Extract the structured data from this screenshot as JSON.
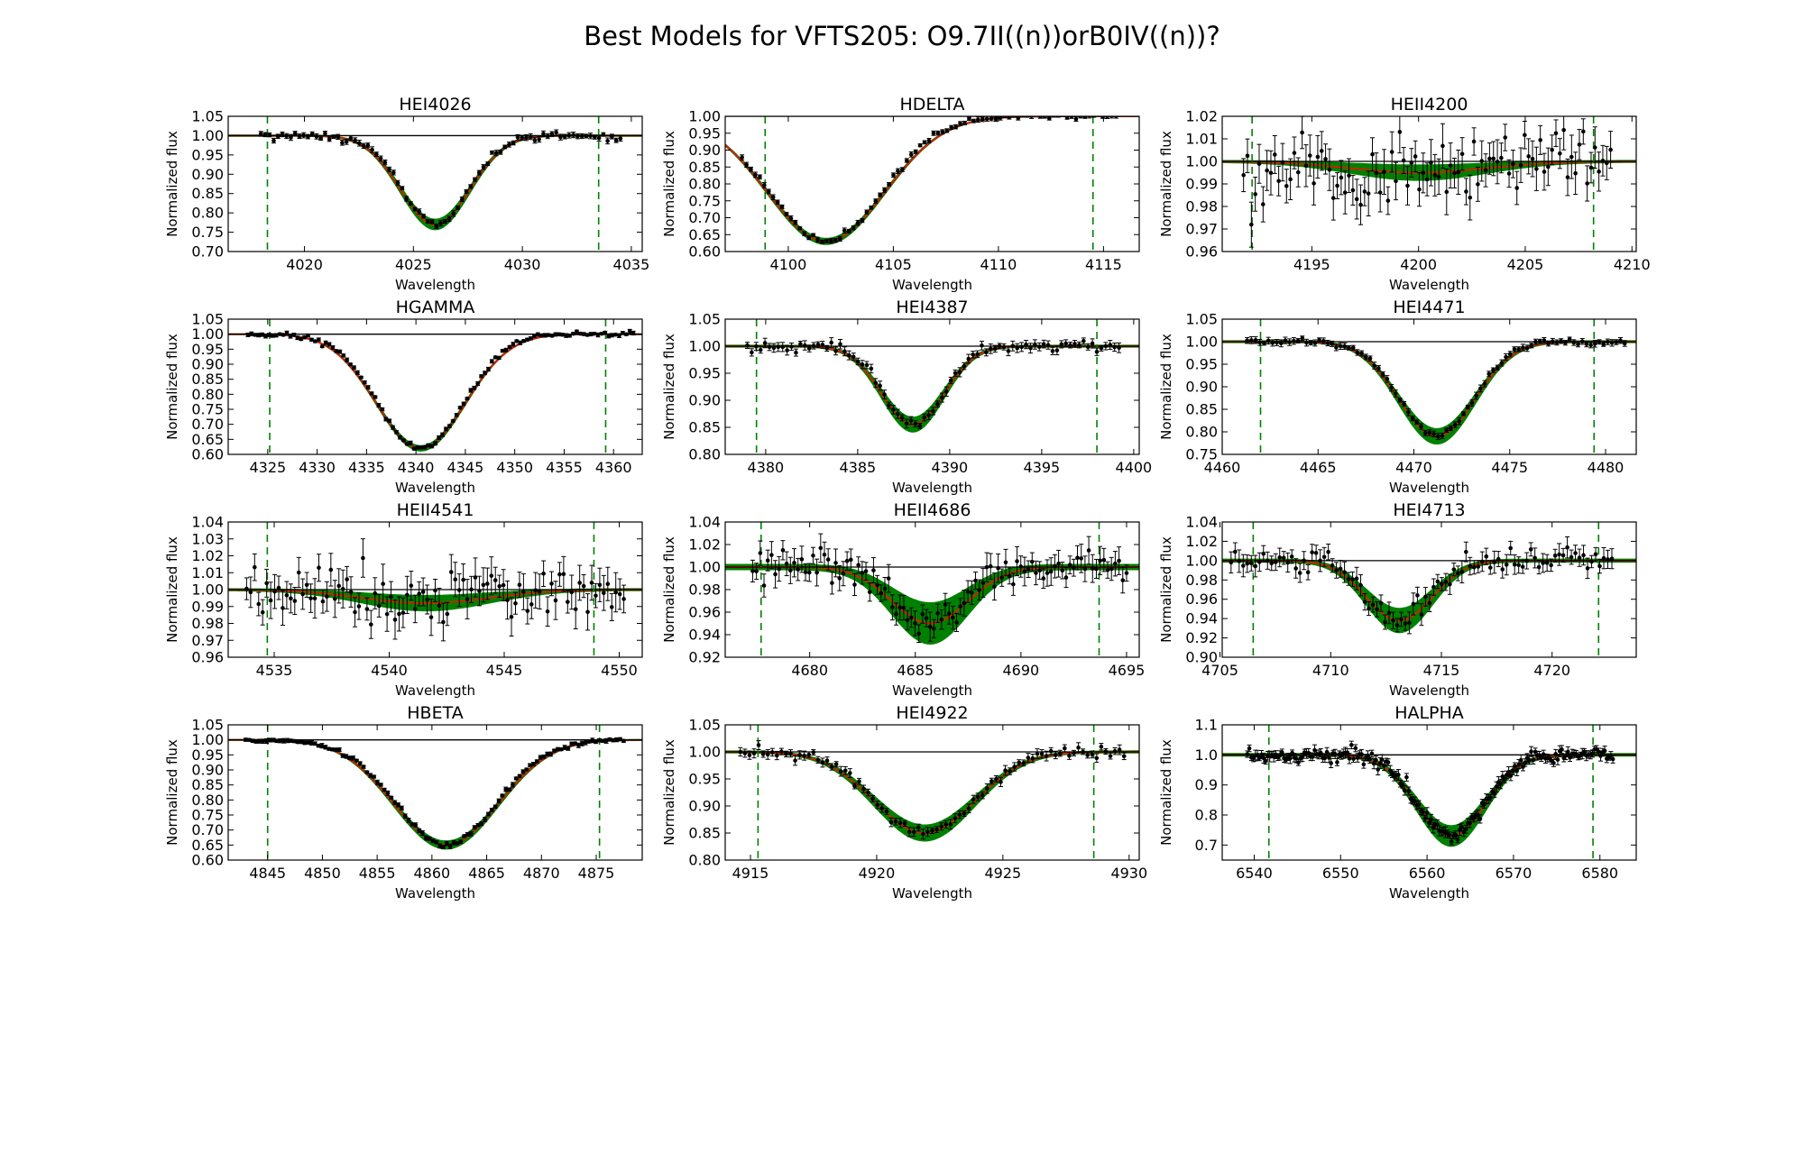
{
  "figure": {
    "title": "Best Models for VFTS205: O9.7II((n))orB0IV((n))?",
    "colors": {
      "data": "#000000",
      "model_band": "#008000",
      "best_model": "#cc2200",
      "window_lines": "#008000",
      "continuum": "#000000"
    }
  },
  "chart_data": [
    {
      "type": "line",
      "title": "HEI4026",
      "xlabel": "Wavelength",
      "ylabel": "Normalized flux",
      "xlim": [
        4016.5,
        4035.5
      ],
      "ylim": [
        0.7,
        1.05
      ],
      "xticks": [
        4020,
        4025,
        4030,
        4035
      ],
      "yticks": [
        0.7,
        0.75,
        0.8,
        0.85,
        0.9,
        0.95,
        1.0,
        1.05
      ],
      "ytick_decimals": 2,
      "line_center": 4026.0,
      "depth": 0.23,
      "width": 1.6,
      "asym": 0,
      "band": 0.012,
      "noise": 0.005,
      "errbar": 0.006,
      "window": [
        4018.3,
        4033.5
      ],
      "data_range": [
        4018.0,
        4034.5
      ],
      "n_points": 85,
      "continuum": 1.0
    },
    {
      "type": "line",
      "title": "HDELTA",
      "xlabel": "Wavelength",
      "ylabel": "Normalized flux",
      "xlim": [
        4097.0,
        4116.7
      ],
      "ylim": [
        0.6,
        1.0
      ],
      "xticks": [
        4100,
        4105,
        4110,
        4115
      ],
      "yticks": [
        0.6,
        0.65,
        0.7,
        0.75,
        0.8,
        0.85,
        0.9,
        0.95,
        1.0
      ],
      "ytick_decimals": 2,
      "line_center": 4101.8,
      "depth": 0.37,
      "width": 2.8,
      "asym": 0,
      "band": 0.008,
      "noise": 0.004,
      "errbar": 0.006,
      "window": [
        4098.9,
        4114.5
      ],
      "data_range": [
        4097.8,
        4115.6
      ],
      "n_points": 85,
      "continuum": 1.0
    },
    {
      "type": "line",
      "title": "HEII4200",
      "xlabel": "Wavelength",
      "ylabel": "Normalized flux",
      "xlim": [
        4190.8,
        4210.2
      ],
      "ylim": [
        0.96,
        1.02
      ],
      "xticks": [
        4195,
        4200,
        4205,
        4210
      ],
      "yticks": [
        0.96,
        0.97,
        0.98,
        0.99,
        1.0,
        1.01,
        1.02
      ],
      "ytick_decimals": 2,
      "line_center": 4200.0,
      "depth": 0.005,
      "width": 3.2,
      "asym": 0,
      "band": 0.003,
      "noise": 0.008,
      "errbar": 0.008,
      "window": [
        4192.2,
        4208.2
      ],
      "data_range": [
        4191.8,
        4209.0
      ],
      "n_points": 95,
      "continuum": 1.0
    },
    {
      "type": "line",
      "title": "HGAMMA",
      "xlabel": "Wavelength",
      "ylabel": "Normalized flux",
      "xlim": [
        4321.0,
        4362.9
      ],
      "ylim": [
        0.6,
        1.05
      ],
      "xticks": [
        4325,
        4330,
        4335,
        4340,
        4345,
        4350,
        4355,
        4360
      ],
      "yticks": [
        0.6,
        0.65,
        0.7,
        0.75,
        0.8,
        0.85,
        0.9,
        0.95,
        1.0,
        1.05
      ],
      "ytick_decimals": 2,
      "line_center": 4340.5,
      "depth": 0.38,
      "width": 4.5,
      "asym": 0,
      "band": 0.008,
      "noise": 0.004,
      "errbar": 0.005,
      "window": [
        4325.2,
        4359.2
      ],
      "data_range": [
        4323.0,
        4362.0
      ],
      "n_points": 110,
      "continuum": 1.0
    },
    {
      "type": "line",
      "title": "HEI4387",
      "xlabel": "Wavelength",
      "ylabel": "Normalized flux",
      "xlim": [
        4377.8,
        4400.3
      ],
      "ylim": [
        0.8,
        1.05
      ],
      "xticks": [
        4380,
        4385,
        4390,
        4395,
        4400
      ],
      "yticks": [
        0.8,
        0.85,
        0.9,
        0.95,
        1.0,
        1.05
      ],
      "ytick_decimals": 2,
      "line_center": 4388.0,
      "depth": 0.145,
      "width": 1.7,
      "asym": 0,
      "band": 0.012,
      "noise": 0.005,
      "errbar": 0.007,
      "window": [
        4379.5,
        4398.0
      ],
      "data_range": [
        4379.0,
        4399.2
      ],
      "n_points": 85,
      "continuum": 1.0
    },
    {
      "type": "line",
      "title": "HEI4471",
      "xlabel": "Wavelength",
      "ylabel": "Normalized flux",
      "xlim": [
        4460.0,
        4481.6
      ],
      "ylim": [
        0.75,
        1.05
      ],
      "xticks": [
        4460,
        4465,
        4470,
        4475,
        4480
      ],
      "yticks": [
        0.75,
        0.8,
        0.85,
        0.9,
        0.95,
        1.0,
        1.05
      ],
      "ytick_decimals": 2,
      "line_center": 4471.2,
      "depth": 0.21,
      "width": 2.0,
      "asym": 0,
      "band": 0.015,
      "noise": 0.004,
      "errbar": 0.006,
      "window": [
        4462.0,
        4479.4
      ],
      "data_range": [
        4461.3,
        4481.0
      ],
      "n_points": 90,
      "continuum": 1.0
    },
    {
      "type": "line",
      "title": "HEII4541",
      "xlabel": "Wavelength",
      "ylabel": "Normalized flux",
      "xlim": [
        4533.0,
        4551.0
      ],
      "ylim": [
        0.96,
        1.04
      ],
      "xticks": [
        4535,
        4540,
        4545,
        4550
      ],
      "yticks": [
        0.96,
        0.97,
        0.98,
        0.99,
        1.0,
        1.01,
        1.02,
        1.03,
        1.04
      ],
      "ytick_decimals": 2,
      "line_center": 4541.6,
      "depth": 0.008,
      "width": 2.8,
      "asym": 0,
      "band": 0.004,
      "noise": 0.008,
      "errbar": 0.009,
      "window": [
        4534.7,
        4548.9
      ],
      "data_range": [
        4533.8,
        4550.2
      ],
      "n_points": 95,
      "continuum": 1.0
    },
    {
      "type": "line",
      "title": "HEII4686",
      "xlabel": "Wavelength",
      "ylabel": "Normalized flux",
      "xlim": [
        4676.0,
        4695.6
      ],
      "ylim": [
        0.92,
        1.04
      ],
      "xticks": [
        4680,
        4685,
        4690,
        4695
      ],
      "yticks": [
        0.92,
        0.94,
        0.96,
        0.98,
        1.0,
        1.02,
        1.04
      ],
      "ytick_decimals": 2,
      "line_center": 4685.7,
      "depth": 0.05,
      "width": 1.8,
      "asym": 0,
      "band": 0.016,
      "noise": 0.008,
      "errbar": 0.01,
      "window": [
        4677.7,
        4693.7
      ],
      "data_range": [
        4677.3,
        4695.0
      ],
      "n_points": 100,
      "continuum": 1.0
    },
    {
      "type": "line",
      "title": "HEI4713",
      "xlabel": "Wavelength",
      "ylabel": "Normalized flux",
      "xlim": [
        4705.1,
        4723.8
      ],
      "ylim": [
        0.9,
        1.04
      ],
      "xticks": [
        4705,
        4710,
        4715,
        4720
      ],
      "yticks": [
        0.9,
        0.92,
        0.94,
        0.96,
        0.98,
        1.0,
        1.02,
        1.04
      ],
      "ytick_decimals": 2,
      "line_center": 4713.1,
      "depth": 0.062,
      "width": 1.5,
      "asym": 0,
      "band": 0.011,
      "noise": 0.007,
      "errbar": 0.009,
      "window": [
        4706.5,
        4722.1
      ],
      "data_range": [
        4705.5,
        4722.7
      ],
      "n_points": 95,
      "continuum": 1.0
    },
    {
      "type": "line",
      "title": "HBETA",
      "xlabel": "Wavelength",
      "ylabel": "Normalized flux",
      "xlim": [
        4841.4,
        4879.2
      ],
      "ylim": [
        0.6,
        1.05
      ],
      "xticks": [
        4845,
        4850,
        4855,
        4860,
        4865,
        4870,
        4875
      ],
      "yticks": [
        0.6,
        0.65,
        0.7,
        0.75,
        0.8,
        0.85,
        0.9,
        0.95,
        1.0,
        1.05
      ],
      "ytick_decimals": 2,
      "line_center": 4861.3,
      "depth": 0.35,
      "width": 4.8,
      "asym": 0,
      "band": 0.012,
      "noise": 0.004,
      "errbar": 0.006,
      "window": [
        4845.0,
        4875.3
      ],
      "data_range": [
        4843.0,
        4877.5
      ],
      "n_points": 110,
      "continuum": 1.0
    },
    {
      "type": "line",
      "title": "HEI4922",
      "xlabel": "Wavelength",
      "ylabel": "Normalized flux",
      "xlim": [
        4914.0,
        4930.4
      ],
      "ylim": [
        0.8,
        1.05
      ],
      "xticks": [
        4915,
        4920,
        4925,
        4930
      ],
      "yticks": [
        0.8,
        0.85,
        0.9,
        0.95,
        1.0,
        1.05
      ],
      "ytick_decimals": 2,
      "line_center": 4921.9,
      "depth": 0.15,
      "width": 2.0,
      "asym": 0,
      "band": 0.013,
      "noise": 0.005,
      "errbar": 0.007,
      "window": [
        4915.3,
        4928.6
      ],
      "data_range": [
        4914.6,
        4929.8
      ],
      "n_points": 85,
      "continuum": 1.0
    },
    {
      "type": "line",
      "title": "HALPHA",
      "xlabel": "Wavelength",
      "ylabel": "Normalized flux",
      "xlim": [
        6536.3,
        6584.2
      ],
      "ylim": [
        0.65,
        1.1
      ],
      "xticks": [
        6540,
        6550,
        6560,
        6570,
        6580
      ],
      "yticks": [
        0.7,
        0.8,
        0.9,
        1.0,
        1.1
      ],
      "ytick_decimals": 1,
      "line_center": 6562.8,
      "depth": 0.27,
      "width": 4.0,
      "asym": 0,
      "band": 0.03,
      "noise": 0.012,
      "errbar": 0.014,
      "window": [
        6541.7,
        6579.2
      ],
      "data_range": [
        6539.2,
        6581.5
      ],
      "n_points": 180,
      "continuum": 1.0
    }
  ]
}
